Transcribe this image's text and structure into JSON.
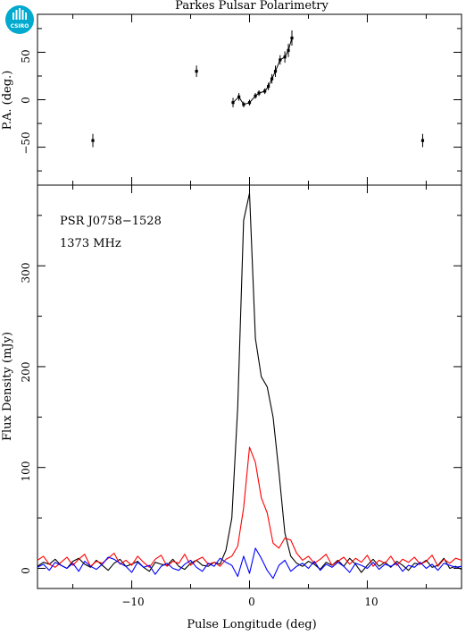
{
  "chart_data": [
    {
      "type": "scatter",
      "title": "Parkes Pulsar Polarimetry",
      "ylabel": "P.A. (deg.)",
      "xlim": [
        -18,
        18
      ],
      "ylim": [
        -90,
        90
      ],
      "yticks": [
        50,
        0,
        -50
      ],
      "ytick_labels": [
        "50",
        "0",
        "−50"
      ],
      "series": [
        {
          "x": [
            -13.3,
            -4.5,
            -1.4,
            -0.9,
            -0.5,
            0.0,
            0.5,
            0.8,
            1.3,
            1.6,
            1.9,
            2.2,
            2.6,
            3.0,
            3.3,
            3.6
          ],
          "y": [
            -43,
            30,
            -3,
            3,
            -5,
            -3,
            4,
            7,
            9,
            14,
            22,
            30,
            42,
            45,
            52,
            65
          ],
          "err": [
            7,
            6,
            5,
            4,
            3,
            3,
            3,
            3,
            3,
            4,
            5,
            6,
            5,
            6,
            7,
            8
          ]
        },
        {
          "x": [
            14.7
          ],
          "y": [
            -43
          ],
          "err": [
            7
          ]
        }
      ]
    },
    {
      "type": "line",
      "xlabel": "Pulse Longitude (deg)",
      "ylabel": "Flux Density (mJy)",
      "annotations": [
        "PSR J0758−1528",
        "1373 MHz"
      ],
      "xlim": [
        -18,
        18
      ],
      "ylim": [
        -20,
        380
      ],
      "xticks": [
        -10,
        0,
        10
      ],
      "xtick_labels": [
        "−10",
        "0",
        "10"
      ],
      "yticks": [
        0,
        100,
        200,
        300
      ],
      "ytick_labels": [
        "0",
        "100",
        "200",
        "300"
      ],
      "grid": false,
      "series": [
        {
          "color": "#000000",
          "x": [
            -18,
            -17.5,
            -17,
            -16.5,
            -16,
            -15.5,
            -15,
            -14.5,
            -14,
            -13.5,
            -13,
            -12.5,
            -12,
            -11.5,
            -11,
            -10.5,
            -10,
            -9.5,
            -9,
            -8.5,
            -8,
            -7.5,
            -7,
            -6.5,
            -6,
            -5.5,
            -5,
            -4.5,
            -4,
            -3.5,
            -3,
            -2.5,
            -2,
            -1.5,
            -1,
            -0.5,
            0,
            0.5,
            1,
            1.5,
            2,
            2.5,
            3,
            3.5,
            4,
            4.5,
            5,
            5.5,
            6,
            6.5,
            7,
            7.5,
            8,
            8.5,
            9,
            9.5,
            10,
            10.5,
            11,
            11.5,
            12,
            12.5,
            13,
            13.5,
            14,
            14.5,
            15,
            15.5,
            16,
            16.5,
            17,
            17.5,
            18
          ],
          "y": [
            2,
            6,
            4,
            9,
            3,
            0,
            7,
            10,
            4,
            1,
            8,
            3,
            -2,
            5,
            9,
            2,
            4,
            7,
            1,
            -3,
            6,
            4,
            3,
            9,
            2,
            -1,
            5,
            8,
            3,
            2,
            6,
            4,
            18,
            50,
            160,
            345,
            372,
            228,
            190,
            180,
            150,
            95,
            35,
            12,
            5,
            2,
            7,
            4,
            -1,
            6,
            3,
            8,
            2,
            10,
            4,
            -4,
            3,
            9,
            2,
            6,
            1,
            7,
            3,
            -2,
            5,
            4,
            8,
            1,
            3,
            10,
            0,
            2,
            -1
          ]
        },
        {
          "color": "#ff0000",
          "x": [
            -18,
            -17.5,
            -17,
            -16.5,
            -16,
            -15.5,
            -15,
            -14.5,
            -14,
            -13.5,
            -13,
            -12.5,
            -12,
            -11.5,
            -11,
            -10.5,
            -10,
            -9.5,
            -9,
            -8.5,
            -8,
            -7.5,
            -7,
            -6.5,
            -6,
            -5.5,
            -5,
            -4.5,
            -4,
            -3.5,
            -3,
            -2.5,
            -2,
            -1.5,
            -1,
            -0.5,
            0,
            0.5,
            1,
            1.5,
            2,
            2.5,
            3,
            3.5,
            4,
            4.5,
            5,
            5.5,
            6,
            6.5,
            7,
            7.5,
            8,
            8.5,
            9,
            9.5,
            10,
            10.5,
            11,
            11.5,
            12,
            12.5,
            13,
            13.5,
            14,
            14.5,
            15,
            15.5,
            16,
            16.5,
            17,
            17.5,
            18
          ],
          "y": [
            8,
            12,
            4,
            1,
            6,
            11,
            3,
            9,
            14,
            2,
            7,
            5,
            10,
            15,
            4,
            8,
            3,
            12,
            6,
            1,
            9,
            13,
            2,
            7,
            5,
            14,
            3,
            8,
            11,
            4,
            6,
            2,
            9,
            12,
            22,
            60,
            120,
            105,
            70,
            55,
            25,
            20,
            30,
            28,
            15,
            8,
            12,
            5,
            9,
            14,
            3,
            7,
            11,
            4,
            10,
            6,
            13,
            2,
            8,
            5,
            12,
            3,
            9,
            6,
            11,
            4,
            7,
            13,
            2,
            9,
            5,
            10,
            8
          ]
        },
        {
          "color": "#0000ff",
          "x": [
            -18,
            -17.5,
            -17,
            -16.5,
            -16,
            -15.5,
            -15,
            -14.5,
            -14,
            -13.5,
            -13,
            -12.5,
            -12,
            -11.5,
            -11,
            -10.5,
            -10,
            -9.5,
            -9,
            -8.5,
            -8,
            -7.5,
            -7,
            -6.5,
            -6,
            -5.5,
            -5,
            -4.5,
            -4,
            -3.5,
            -3,
            -2.5,
            -2,
            -1.5,
            -1,
            -0.5,
            0,
            0.5,
            1,
            1.5,
            2,
            2.5,
            3,
            3.5,
            4,
            4.5,
            5,
            5.5,
            6,
            6.5,
            7,
            7.5,
            8,
            8.5,
            9,
            9.5,
            10,
            10.5,
            11,
            11.5,
            12,
            12.5,
            13,
            13.5,
            14,
            14.5,
            15,
            15.5,
            16,
            16.5,
            17,
            17.5,
            18
          ],
          "y": [
            1,
            4,
            -2,
            6,
            3,
            0,
            5,
            -3,
            7,
            2,
            -1,
            4,
            11,
            9,
            5,
            2,
            -4,
            6,
            1,
            3,
            -6,
            2,
            5,
            0,
            -2,
            4,
            8,
            1,
            -3,
            5,
            2,
            10,
            6,
            3,
            -8,
            12,
            -5,
            20,
            10,
            -2,
            -10,
            3,
            8,
            -3,
            2,
            5,
            0,
            7,
            -2,
            4,
            1,
            6,
            2,
            -4,
            5,
            3,
            0,
            6,
            -1,
            4,
            2,
            5,
            -3,
            3,
            1,
            6,
            0,
            4,
            -2,
            5,
            3,
            1,
            2
          ]
        }
      ]
    }
  ],
  "logo": {
    "text": "CSIRO",
    "color": "#00a9ce"
  }
}
